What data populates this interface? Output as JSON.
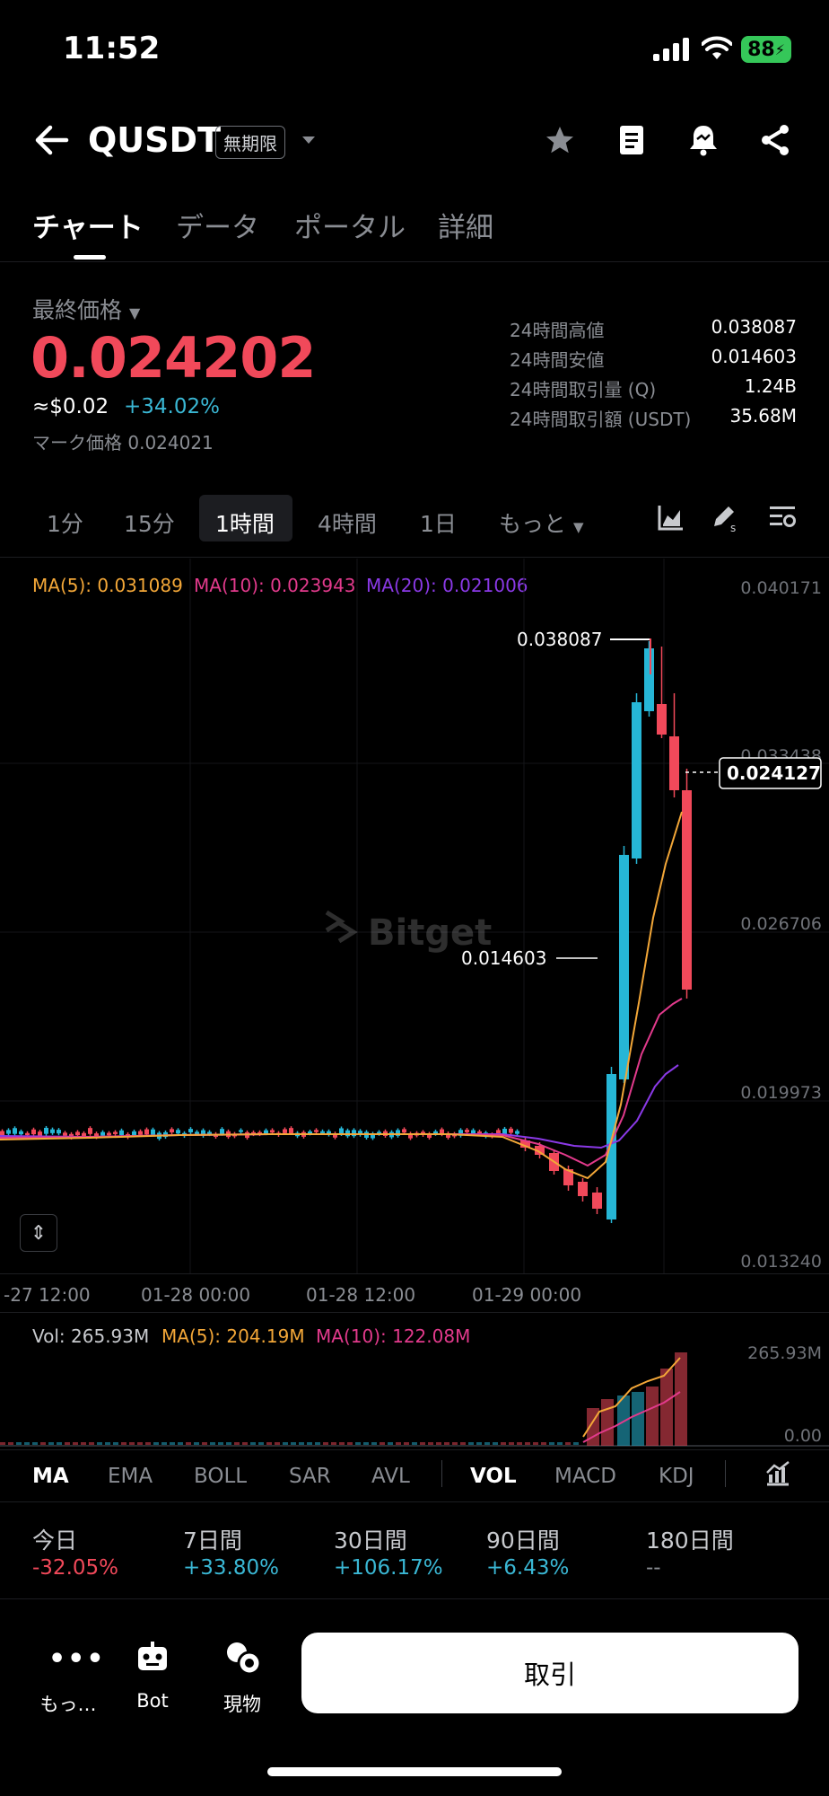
{
  "status_bar": {
    "time": "11:52",
    "battery": "88"
  },
  "header": {
    "symbol": "QUSDT",
    "badge": "無期限"
  },
  "tabs": [
    "チャート",
    "データ",
    "ポータル",
    "詳細"
  ],
  "price": {
    "label": "最終価格",
    "last": "0.024202",
    "usd": "≈$0.02",
    "change_pct": "+34.02%",
    "mark": "マーク価格 0.024021"
  },
  "stats": [
    {
      "label": "24時間高値",
      "value": "0.038087"
    },
    {
      "label": "24時間安値",
      "value": "0.014603"
    },
    {
      "label": "24時間取引量 (Q)",
      "value": "1.24B"
    },
    {
      "label": "24時間取引額 (USDT)",
      "value": "35.68M"
    }
  ],
  "intervals": [
    "1分",
    "15分",
    "1時間",
    "4時間",
    "1日",
    "もっと"
  ],
  "chart": {
    "ma_labels": [
      "MA(5): 0.031089",
      "MA(10): 0.023943",
      "MA(20): 0.021006"
    ],
    "y_ticks": [
      "0.040171",
      "0.033438",
      "0.026706",
      "0.019973",
      "0.013240"
    ],
    "x_ticks": [
      "-27 12:00",
      "01-28 00:00",
      "01-28 12:00",
      "01-29 00:00"
    ],
    "high_marker": "0.038087",
    "low_marker": "0.014603",
    "current_price": "0.024127",
    "watermark": "Bitget",
    "colors": {
      "up": "#26b6d6",
      "down": "#f1495a",
      "ma5": "#f3a738",
      "ma10": "#e23a8c",
      "ma20": "#8a39e6"
    }
  },
  "volume": {
    "labels": [
      "Vol: 265.93M",
      "MA(5): 204.19M",
      "MA(10): 122.08M"
    ],
    "y_ticks": [
      "265.93M",
      "0.00"
    ]
  },
  "indicators": [
    "MA",
    "EMA",
    "BOLL",
    "SAR",
    "AVL",
    "VOL",
    "MACD",
    "KDJ"
  ],
  "performance": [
    {
      "label": "今日",
      "value": "-32.05%"
    },
    {
      "label": "7日間",
      "value": "+33.80%"
    },
    {
      "label": "30日間",
      "value": "+106.17%"
    },
    {
      "label": "90日間",
      "value": "+6.43%"
    },
    {
      "label": "180日間",
      "value": "--"
    }
  ],
  "bottom_nav": {
    "more": "もっ…",
    "bot": "Bot",
    "spot": "現物",
    "trade": "取引"
  }
}
